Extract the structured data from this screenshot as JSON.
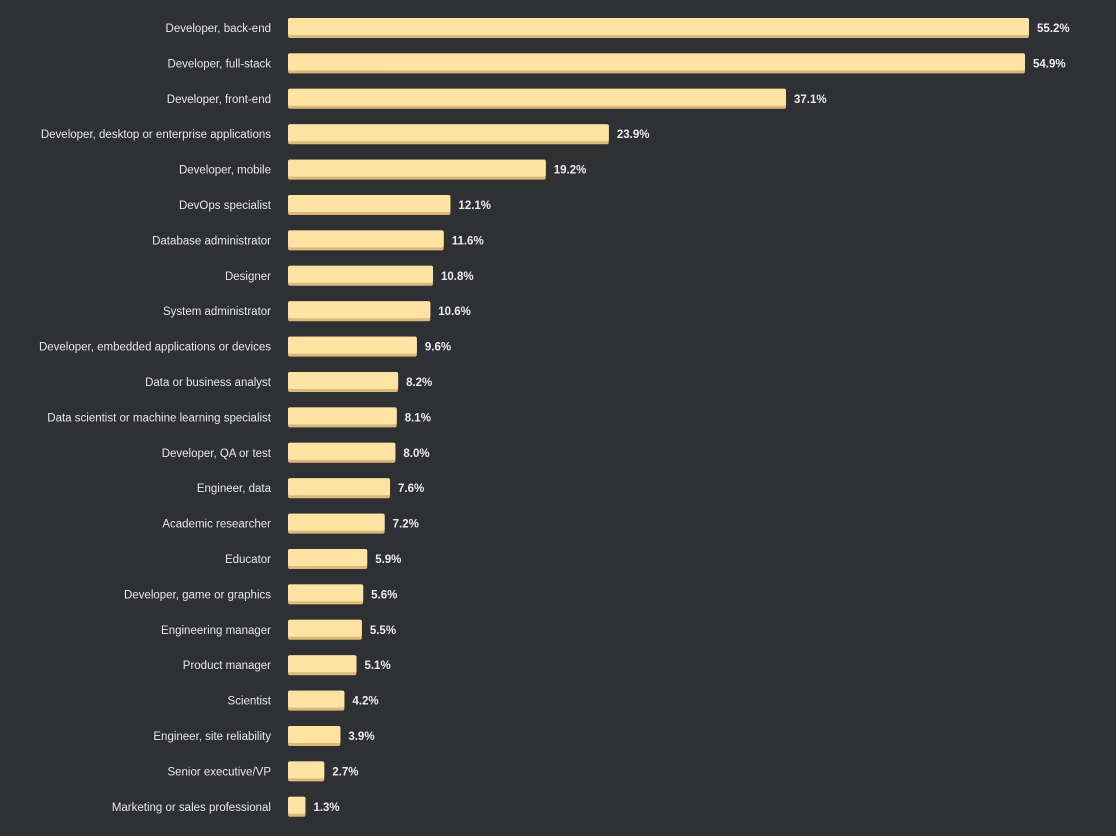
{
  "chart_data": {
    "type": "bar",
    "orientation": "horizontal",
    "categories": [
      "Developer, back-end",
      "Developer, full-stack",
      "Developer, front-end",
      "Developer, desktop or enterprise applications",
      "Developer, mobile",
      "DevOps specialist",
      "Database administrator",
      "Designer",
      "System administrator",
      "Developer, embedded applications or devices",
      "Data or business analyst",
      "Data scientist or machine learning specialist",
      "Developer, QA or test",
      "Engineer, data",
      "Academic researcher",
      "Educator",
      "Developer, game or graphics",
      "Engineering manager",
      "Product manager",
      "Scientist",
      "Engineer, site reliability",
      "Senior executive/VP",
      "Marketing or sales professional"
    ],
    "values": [
      55.2,
      54.9,
      37.1,
      23.9,
      19.2,
      12.1,
      11.6,
      10.8,
      10.6,
      9.6,
      8.2,
      8.1,
      8.0,
      7.6,
      7.2,
      5.9,
      5.6,
      5.5,
      5.1,
      4.2,
      3.9,
      2.7,
      1.3
    ],
    "value_labels": [
      "55.2%",
      "54.9%",
      "37.1%",
      "23.9%",
      "19.2%",
      "12.1%",
      "11.6%",
      "10.8%",
      "10.6%",
      "9.6%",
      "8.2%",
      "8.1%",
      "8.0%",
      "7.6%",
      "7.2%",
      "5.9%",
      "5.6%",
      "5.5%",
      "5.1%",
      "4.2%",
      "3.9%",
      "2.7%",
      "1.3%"
    ],
    "unit": "%",
    "xlim": [
      0,
      55.2
    ],
    "grid": false,
    "legend": "none",
    "colors": {
      "bar": "#fee3a3",
      "bar_shadow": "#dcb978",
      "background": "#2f3034",
      "text": "#e8e8e8"
    }
  }
}
